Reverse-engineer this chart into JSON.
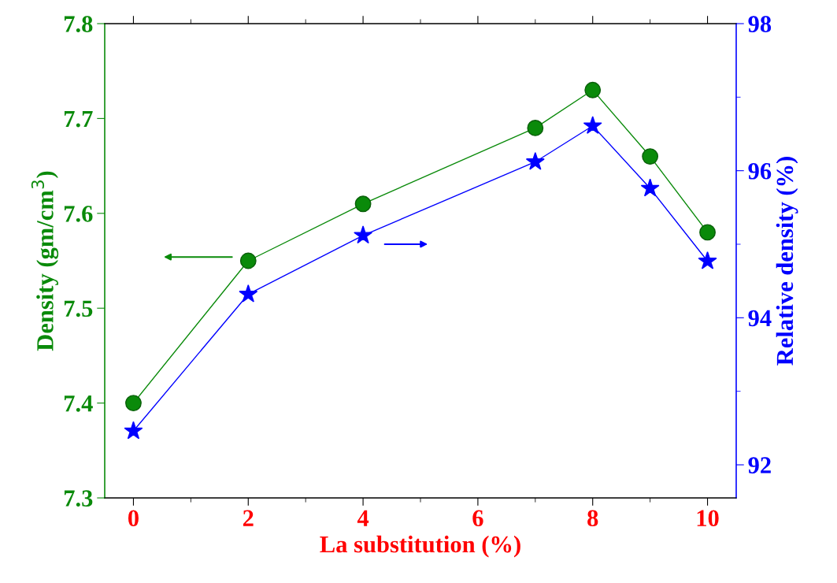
{
  "chart_data": {
    "type": "line",
    "xlabel": "La substitution (%)",
    "ylabel": "Density (gm/cm$^{3}$)",
    "y2label": "Relative density (%)",
    "x": [
      0,
      2,
      4,
      7,
      8,
      9,
      10
    ],
    "series": [
      {
        "color": "#0a8a0a",
        "marker": "circle",
        "values": [
          7.4,
          7.55,
          7.61,
          7.69,
          7.73,
          7.66,
          7.58
        ]
      },
      {
        "color": "#0000ff",
        "marker": "star",
        "axis": "y2",
        "values": [
          92.46,
          94.32,
          95.12,
          96.12,
          96.61,
          95.76,
          94.77
        ]
      }
    ],
    "xlim": [
      -0.5,
      10.5
    ],
    "xticks": [
      0,
      2,
      4,
      6,
      8,
      10
    ],
    "ylim": [
      7.3,
      7.8
    ],
    "yticks": [
      7.3,
      7.4,
      7.5,
      7.6,
      7.7,
      7.8
    ],
    "y2lim": [
      91.55,
      98
    ],
    "y2ticks": [
      92,
      94,
      96,
      98
    ],
    "line_style": "solid",
    "grid": false,
    "legend": false
  }
}
